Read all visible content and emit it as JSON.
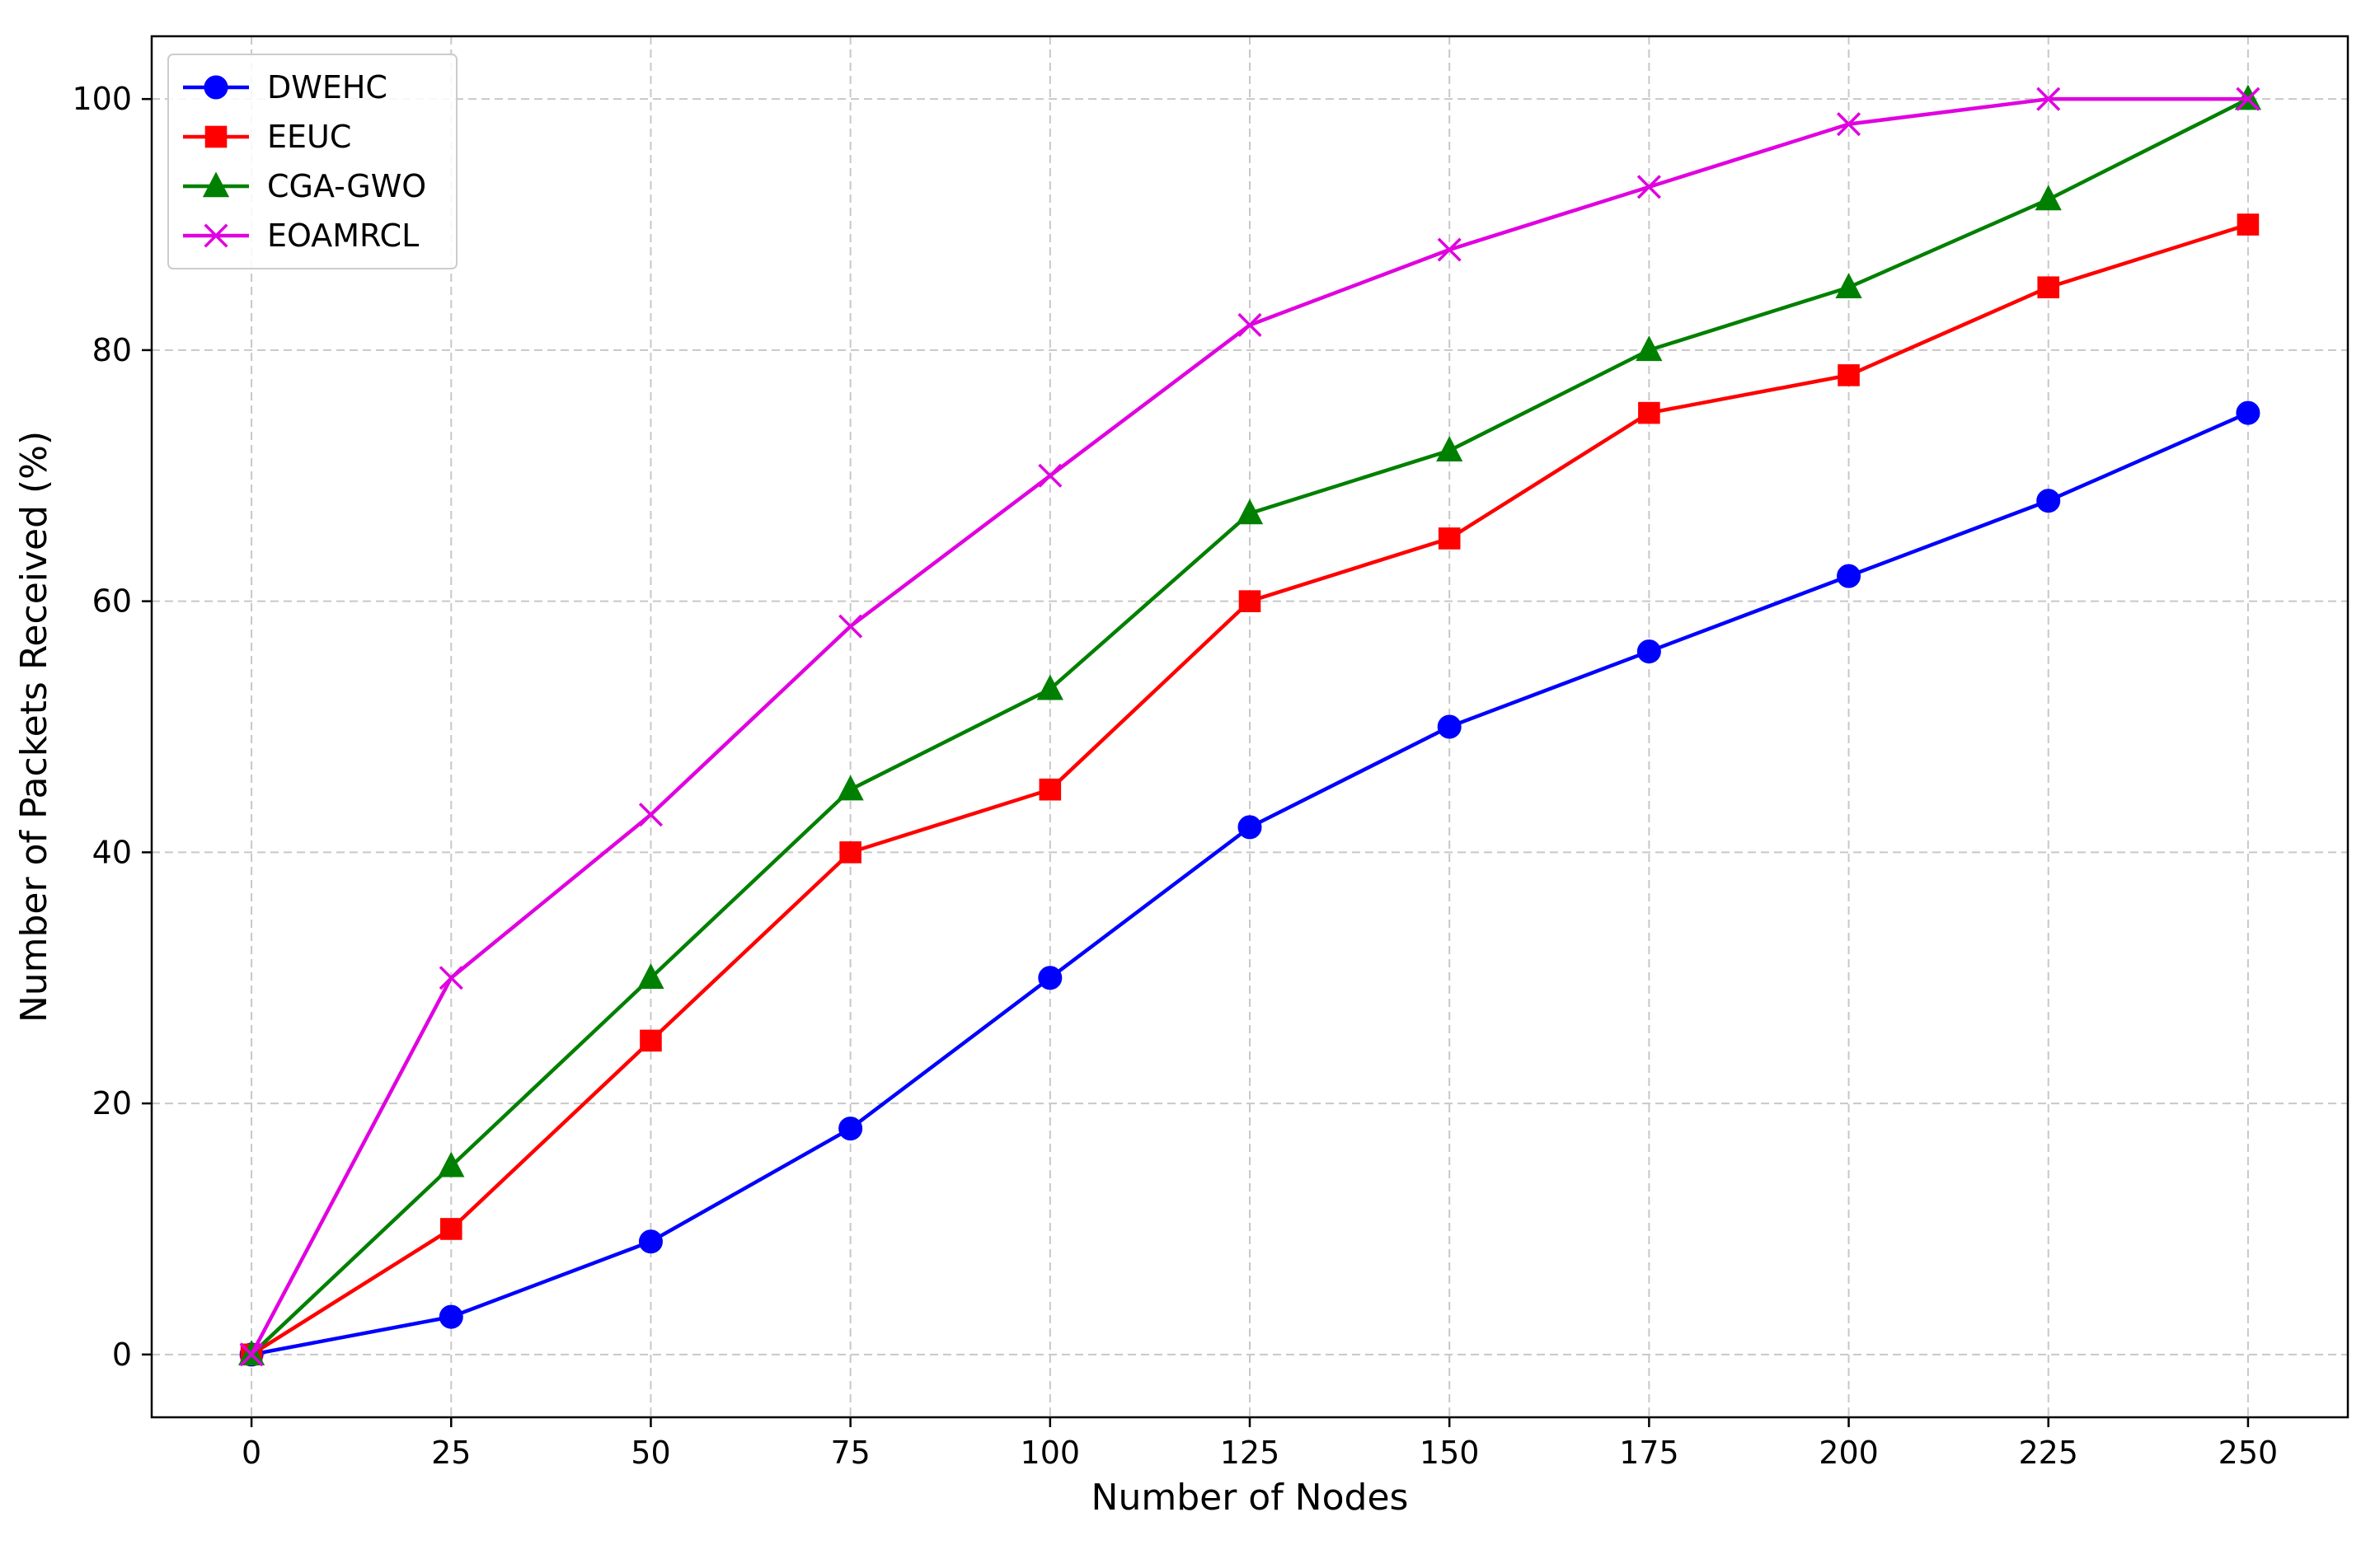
{
  "chart_data": {
    "type": "line",
    "title": "",
    "xlabel": "Number of Nodes",
    "ylabel": "Number of Packets Received (%)",
    "x": [
      0,
      25,
      50,
      75,
      100,
      125,
      150,
      175,
      200,
      225,
      250
    ],
    "xlim": [
      -12.5,
      262.5
    ],
    "ylim": [
      -5,
      105
    ],
    "xticks": [
      0,
      25,
      50,
      75,
      100,
      125,
      150,
      175,
      200,
      225,
      250
    ],
    "yticks": [
      0,
      20,
      40,
      60,
      80,
      100
    ],
    "grid": true,
    "legend_position": "top-left",
    "series": [
      {
        "name": "DWEHC",
        "color": "#0000ff",
        "marker": "circle",
        "values": [
          0,
          3,
          9,
          18,
          30,
          42,
          50,
          56,
          62,
          68,
          75
        ]
      },
      {
        "name": "EEUC",
        "color": "#ff0000",
        "marker": "square",
        "values": [
          0,
          10,
          25,
          40,
          45,
          60,
          65,
          75,
          78,
          85,
          90
        ]
      },
      {
        "name": "CGA-GWO",
        "color": "#008000",
        "marker": "triangle",
        "values": [
          0,
          15,
          30,
          45,
          53,
          67,
          72,
          80,
          85,
          92,
          100
        ]
      },
      {
        "name": "EOAMRCL",
        "color": "#e000e0",
        "marker": "x",
        "values": [
          0,
          30,
          43,
          58,
          70,
          82,
          88,
          93,
          98,
          100,
          100
        ]
      }
    ]
  }
}
